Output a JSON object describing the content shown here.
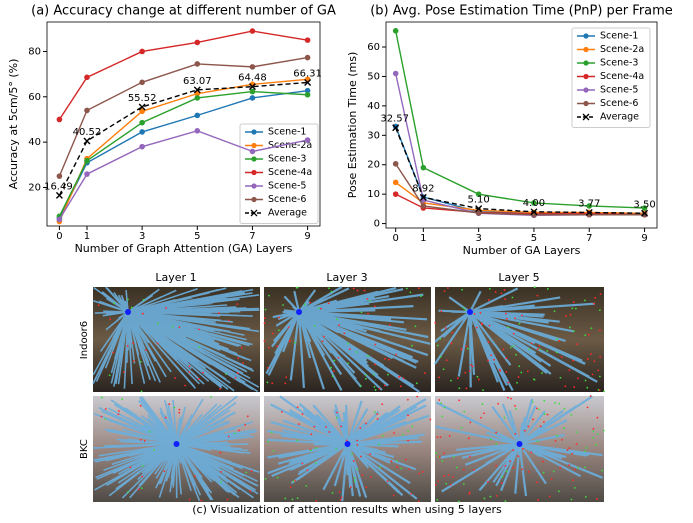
{
  "chart_data": [
    {
      "type": "line",
      "title": "(a) Accuracy change at different number of GA",
      "x_label": "Number of Graph Attention (GA) Layers",
      "y_label": "Accuracy at 5cm/5° (%)",
      "x": [
        0,
        1,
        3,
        5,
        7,
        9
      ],
      "xlim": [
        -0.45,
        9.45
      ],
      "xticks": [
        0,
        1,
        3,
        5,
        7,
        9
      ],
      "ylim": [
        3,
        93
      ],
      "yticks": [
        20,
        40,
        60,
        80
      ],
      "legend": "lower right",
      "series": [
        {
          "name": "Scene-1",
          "color": "#1f77b4",
          "values": [
            6.4,
            30.9,
            44.5,
            51.8,
            59.5,
            62.7
          ]
        },
        {
          "name": "Scene-2a",
          "color": "#ff7f0e",
          "values": [
            5,
            32.7,
            53.6,
            61.4,
            65.5,
            67.7
          ]
        },
        {
          "name": "Scene-3",
          "color": "#2ca02c",
          "values": [
            7.3,
            31.8,
            48.6,
            59.5,
            62.3,
            60.9
          ]
        },
        {
          "name": "Scene-4a",
          "color": "#d62728",
          "values": [
            50,
            68.6,
            80,
            84,
            89,
            85
          ]
        },
        {
          "name": "Scene-5",
          "color": "#9467bd",
          "values": [
            5.9,
            25.9,
            38,
            45,
            35.9,
            40.9
          ]
        },
        {
          "name": "Scene-6",
          "color": "#8c564b",
          "values": [
            25,
            54,
            66.4,
            74.5,
            73.2,
            77.3
          ]
        },
        {
          "name": "Average",
          "color": "#000000",
          "linestyle": "dashed",
          "marker": "x",
          "values": [
            16.49,
            40.52,
            55.52,
            63.07,
            64.48,
            66.31
          ],
          "value_labels": [
            "16.49",
            "40.52",
            "55.52",
            "63.07",
            "64.48",
            "66.31"
          ]
        }
      ]
    },
    {
      "type": "line",
      "title": "(b) Avg. Pose Estimation Time (PnP) per Frame",
      "x_label": "Number of GA Layers",
      "y_label": "Pose Estimation Time (ms)",
      "x": [
        0,
        1,
        3,
        5,
        7,
        9
      ],
      "xlim": [
        -0.35,
        9.45
      ],
      "xticks": [
        0,
        1,
        3,
        5,
        7,
        9
      ],
      "ylim": [
        -1.5,
        68.5
      ],
      "yticks": [
        0,
        10,
        20,
        30,
        40,
        50,
        60
      ],
      "legend": "upper right",
      "series": [
        {
          "name": "Scene-1",
          "color": "#1f77b4",
          "values": [
            33,
            9,
            4,
            3.5,
            3.5,
            3.5
          ]
        },
        {
          "name": "Scene-2a",
          "color": "#ff7f0e",
          "values": [
            14,
            7,
            4.5,
            3.8,
            3.8,
            3.5
          ]
        },
        {
          "name": "Scene-3",
          "color": "#2ca02c",
          "values": [
            65.5,
            19,
            10,
            7,
            6,
            5.3
          ]
        },
        {
          "name": "Scene-4a",
          "color": "#d62728",
          "values": [
            10,
            5.3,
            3.8,
            3.3,
            3.3,
            3
          ]
        },
        {
          "name": "Scene-5",
          "color": "#9467bd",
          "values": [
            51,
            8,
            3.5,
            2.8,
            3,
            3
          ]
        },
        {
          "name": "Scene-6",
          "color": "#8c564b",
          "values": [
            20.3,
            6,
            3.6,
            3,
            3,
            3
          ]
        },
        {
          "name": "Average",
          "color": "#000000",
          "linestyle": "dashed",
          "marker": "x",
          "values": [
            32.57,
            8.92,
            5.1,
            4,
            3.77,
            3.5
          ],
          "value_labels": [
            "32.57",
            "8.92",
            "5.10",
            "4.00",
            "3.77",
            "3.50"
          ]
        }
      ]
    }
  ],
  "visualization": {
    "columns": [
      "Layer 1",
      "Layer 3",
      "Layer 5"
    ],
    "rows": [
      "Indoor6",
      "BKC"
    ],
    "caption": "(c) Visualization of attention results when using 5 layers"
  }
}
